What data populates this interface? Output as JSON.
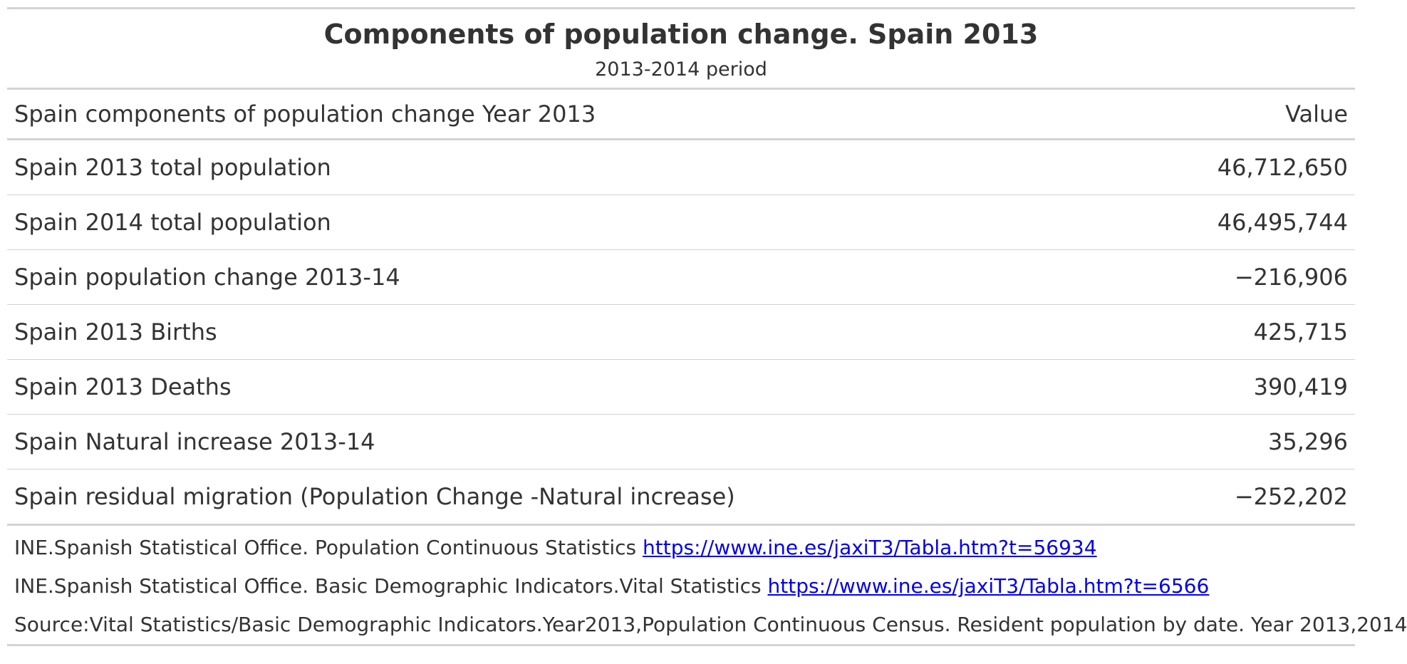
{
  "title": "Components of population change. Spain 2013",
  "subtitle": "2013-2014 period",
  "columns": {
    "label": "Spain components of population change Year 2013",
    "value": "Value"
  },
  "rows": [
    {
      "label": "Spain 2013 total population",
      "value": "46,712,650"
    },
    {
      "label": "Spain 2014 total population",
      "value": "46,495,744"
    },
    {
      "label": "Spain population change 2013-14",
      "value": "−216,906"
    },
    {
      "label": "Spain 2013 Births",
      "value": "425,715"
    },
    {
      "label": "Spain 2013 Deaths",
      "value": "390,419"
    },
    {
      "label": "Spain Natural increase 2013-14",
      "value": "35,296"
    },
    {
      "label": "Spain residual migration (Population Change -Natural increase)",
      "value": "−252,202"
    }
  ],
  "notes": [
    {
      "text": "INE.Spanish Statistical Office. Population Continuous Statistics ",
      "link": "https://www.ine.es/jaxiT3/Tabla.htm?t=56934"
    },
    {
      "text": "INE.Spanish Statistical Office. Basic Demographic Indicators.Vital Statistics ",
      "link": "https://www.ine.es/jaxiT3/Tabla.htm?t=6566"
    },
    {
      "text": "Source:Vital Statistics/Basic Demographic Indicators.Year2013,Population Continuous Census. Resident population by date. Year 2013,2014",
      "link": ""
    }
  ],
  "colors": {
    "text": "#333333",
    "rule": "#d3d3d3",
    "link": "#0000ee"
  }
}
